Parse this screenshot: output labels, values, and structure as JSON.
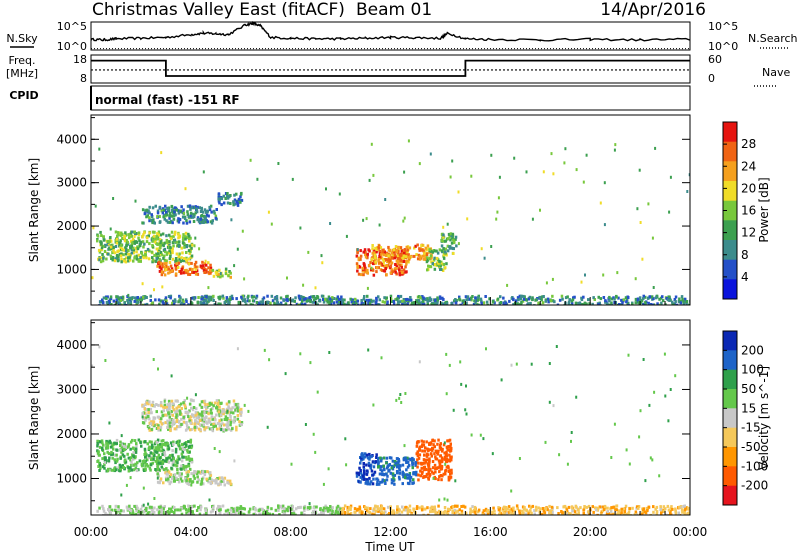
{
  "header": {
    "title": "Christmas Valley East (fitACF)",
    "beam": "Beam 01",
    "date": "14/Apr/2016"
  },
  "mode_text": "normal (fast) -151 RF",
  "left_labels": {
    "nsky": "N.Sky",
    "freq": "Freq.",
    "freq_unit": "[MHz]",
    "cpid": "CPID"
  },
  "right_labels": {
    "nsearch": "N.Search",
    "nave": "Nave"
  },
  "noise_panel": {
    "left_ticks": [
      "10^5",
      "10^0"
    ],
    "right_ticks": [
      "10^5",
      "10^0"
    ]
  },
  "freq_panel": {
    "left_ticks": [
      "18",
      "8"
    ],
    "right_ticks": [
      "60",
      "0"
    ]
  },
  "colors": {
    "power": [
      "#0a14dc",
      "#2450c8",
      "#3c8c8c",
      "#3ca050",
      "#78c83c",
      "#f0dc28",
      "#f5a01e",
      "#f06414",
      "#e6140f"
    ],
    "velocity": [
      "#e6141e",
      "#ff5a00",
      "#ff9600",
      "#f5c85a",
      "#c8c8c8",
      "#64c84b",
      "#2fa04b",
      "#1e64c8",
      "#0a28b4"
    ]
  },
  "chart_data": [
    {
      "type": "line",
      "panel": "noise",
      "series": [
        {
          "name": "N.Sky",
          "x": [
            0,
            0.5,
            1,
            2,
            3,
            4,
            4.5,
            5,
            5.5,
            6.2,
            6.5,
            6.8,
            7.2,
            8,
            9,
            10,
            11,
            12,
            13,
            14,
            14.3,
            15,
            16,
            18,
            20,
            22,
            24
          ],
          "y": [
            0.38,
            0.36,
            0.4,
            0.42,
            0.45,
            0.55,
            0.6,
            0.58,
            0.55,
            0.9,
            0.95,
            0.85,
            0.45,
            0.42,
            0.4,
            0.4,
            0.42,
            0.45,
            0.44,
            0.42,
            0.6,
            0.4,
            0.38,
            0.36,
            0.38,
            0.36,
            0.38
          ]
        },
        {
          "name": "N.Search",
          "x": [
            0,
            24
          ],
          "y": [
            0.05,
            0.05
          ]
        }
      ]
    },
    {
      "type": "line",
      "panel": "frequency",
      "series": [
        {
          "name": "Freq.",
          "x": [
            0,
            3,
            3,
            15,
            15,
            24
          ],
          "y": [
            16.0,
            16.0,
            10.5,
            10.5,
            16.0,
            16.0
          ]
        },
        {
          "name": "Nave",
          "x": [
            0,
            24
          ],
          "y": [
            28,
            28
          ]
        }
      ]
    },
    {
      "type": "heatmap",
      "panel": "power",
      "title": "Christmas Valley East (fitACF)",
      "xlabel": "",
      "ylabel": "Slant Range [km]",
      "xlim": [
        0,
        24
      ],
      "ylim": [
        180,
        4560
      ],
      "x_ticks": [
        "00:00",
        "04:00",
        "08:00",
        "12:00",
        "16:00",
        "20:00",
        "00:00"
      ],
      "y_ticks": [
        "1000",
        "2000",
        "3000",
        "4000"
      ],
      "colorbar": {
        "label": "Power [dB]",
        "ticks": [
          "4",
          "8",
          "12",
          "16",
          "20",
          "24",
          "28"
        ],
        "range": [
          0,
          30
        ]
      },
      "regions": [
        {
          "x": [
            0.2,
            4.0
          ],
          "y": [
            1200,
            1900
          ],
          "value": 14
        },
        {
          "x": [
            2.6,
            4.8
          ],
          "y": [
            900,
            1200
          ],
          "value": 24
        },
        {
          "x": [
            4.8,
            5.6
          ],
          "y": [
            850,
            1050
          ],
          "value": 17
        },
        {
          "x": [
            2.0,
            5.0
          ],
          "y": [
            2100,
            2500
          ],
          "value": 9
        },
        {
          "x": [
            5.0,
            6.0
          ],
          "y": [
            2500,
            2800
          ],
          "value": 8
        },
        {
          "x": [
            10.6,
            12.6
          ],
          "y": [
            900,
            1500
          ],
          "value": 25
        },
        {
          "x": [
            11.2,
            13.6
          ],
          "y": [
            1200,
            1600
          ],
          "value": 22
        },
        {
          "x": [
            13.4,
            14.2
          ],
          "y": [
            1000,
            1500
          ],
          "value": 14
        },
        {
          "x": [
            14.0,
            14.6
          ],
          "y": [
            1400,
            1900
          ],
          "value": 13
        },
        {
          "x": [
            0.2,
            24
          ],
          "y": [
            200,
            420
          ],
          "value": 9
        }
      ]
    },
    {
      "type": "heatmap",
      "panel": "velocity",
      "xlabel": "Time UT",
      "ylabel": "Slant Range [km]",
      "xlim": [
        0,
        24
      ],
      "ylim": [
        180,
        4560
      ],
      "x_ticks": [
        "00:00",
        "04:00",
        "08:00",
        "12:00",
        "16:00",
        "20:00",
        "00:00"
      ],
      "y_ticks": [
        "1000",
        "2000",
        "3000",
        "4000"
      ],
      "colorbar": {
        "label": "Velocity [m s^-1]",
        "ticks": [
          "200",
          "100",
          "50",
          "15",
          "-15",
          "-50",
          "-100",
          "-200"
        ]
      },
      "regions": [
        {
          "x": [
            0.2,
            4.0
          ],
          "y": [
            1200,
            1900
          ],
          "value": 40
        },
        {
          "x": [
            2.6,
            4.8
          ],
          "y": [
            900,
            1200
          ],
          "value": 10
        },
        {
          "x": [
            4.8,
            5.6
          ],
          "y": [
            850,
            1050
          ],
          "value": 0
        },
        {
          "x": [
            2.0,
            6.0
          ],
          "y": [
            2100,
            2800
          ],
          "value": 0
        },
        {
          "x": [
            10.6,
            11.4
          ],
          "y": [
            900,
            1600
          ],
          "value": 200
        },
        {
          "x": [
            11.4,
            13.0
          ],
          "y": [
            900,
            1500
          ],
          "value": 120
        },
        {
          "x": [
            13.0,
            14.4
          ],
          "y": [
            1000,
            1900
          ],
          "value": -150
        },
        {
          "x": [
            0.2,
            10.0
          ],
          "y": [
            200,
            420
          ],
          "value": 20
        },
        {
          "x": [
            10.0,
            24
          ],
          "y": [
            200,
            420
          ],
          "value": -40
        }
      ]
    }
  ]
}
